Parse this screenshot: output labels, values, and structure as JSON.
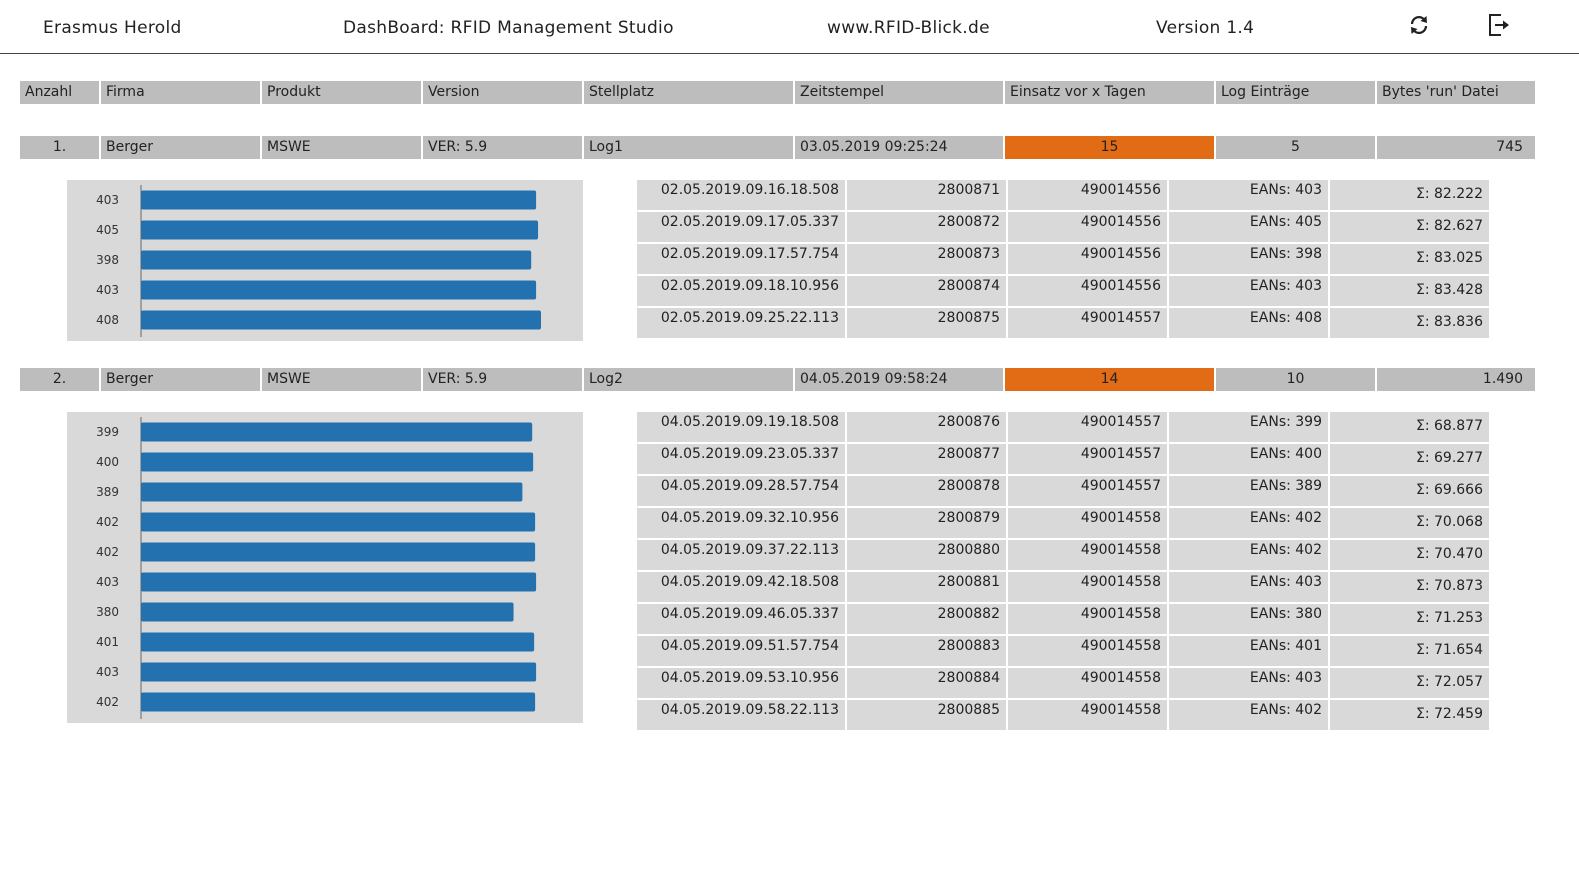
{
  "header": {
    "user": "Erasmus Herold",
    "app_title": "DashBoard: RFID Management Studio",
    "website": "www.RFID-Blick.de",
    "version": "Version 1.4",
    "refresh_icon": "refresh-icon",
    "logout_icon": "logout-icon"
  },
  "columns": [
    "Anzahl",
    "Firma",
    "Produkt",
    "Version",
    "Stellplatz",
    "Zeitstempel",
    "Einsatz vor x Tagen",
    "Log Einträge",
    "Bytes 'run' Datei"
  ],
  "colors": {
    "header_bg": "#bdbdbd",
    "panel_bg": "#d9d9d9",
    "highlight": "#e26b16",
    "bar": "#2471b0"
  },
  "entries": [
    {
      "summary": {
        "index": "1.",
        "firma": "Berger",
        "produkt": "MSWE",
        "version": "VER: 5.9",
        "stellplatz": "Log1",
        "zeitstempel": "03.05.2019 09:25:24",
        "einsatz": "15",
        "log_eintraege": "5",
        "bytes": "745"
      },
      "chart_data": {
        "type": "bar",
        "orientation": "horizontal",
        "categories": [
          "403",
          "405",
          "398",
          "403",
          "408"
        ],
        "values": [
          403,
          405,
          398,
          403,
          408
        ]
      },
      "logs": [
        {
          "timestamp": "02.05.2019.09.16.18.508",
          "id": "2800871",
          "code": "490014556",
          "eans": "EANs: 403",
          "sum": "Σ: 82.222"
        },
        {
          "timestamp": "02.05.2019.09.17.05.337",
          "id": "2800872",
          "code": "490014556",
          "eans": "EANs: 405",
          "sum": "Σ: 82.627"
        },
        {
          "timestamp": "02.05.2019.09.17.57.754",
          "id": "2800873",
          "code": "490014556",
          "eans": "EANs: 398",
          "sum": "Σ: 83.025"
        },
        {
          "timestamp": "02.05.2019.09.18.10.956",
          "id": "2800874",
          "code": "490014556",
          "eans": "EANs: 403",
          "sum": "Σ: 83.428"
        },
        {
          "timestamp": "02.05.2019.09.25.22.113",
          "id": "2800875",
          "code": "490014557",
          "eans": "EANs: 408",
          "sum": "Σ: 83.836"
        }
      ]
    },
    {
      "summary": {
        "index": "2.",
        "firma": "Berger",
        "produkt": "MSWE",
        "version": "VER: 5.9",
        "stellplatz": "Log2",
        "zeitstempel": "04.05.2019 09:58:24",
        "einsatz": "14",
        "log_eintraege": "10",
        "bytes": "1.490"
      },
      "chart_data": {
        "type": "bar",
        "orientation": "horizontal",
        "categories": [
          "399",
          "400",
          "389",
          "402",
          "402",
          "403",
          "380",
          "401",
          "403",
          "402"
        ],
        "values": [
          399,
          400,
          389,
          402,
          402,
          403,
          380,
          401,
          403,
          402
        ]
      },
      "logs": [
        {
          "timestamp": "04.05.2019.09.19.18.508",
          "id": "2800876",
          "code": "490014557",
          "eans": "EANs: 399",
          "sum": "Σ: 68.877"
        },
        {
          "timestamp": "04.05.2019.09.23.05.337",
          "id": "2800877",
          "code": "490014557",
          "eans": "EANs: 400",
          "sum": "Σ: 69.277"
        },
        {
          "timestamp": "04.05.2019.09.28.57.754",
          "id": "2800878",
          "code": "490014557",
          "eans": "EANs: 389",
          "sum": "Σ: 69.666"
        },
        {
          "timestamp": "04.05.2019.09.32.10.956",
          "id": "2800879",
          "code": "490014558",
          "eans": "EANs: 402",
          "sum": "Σ: 70.068"
        },
        {
          "timestamp": "04.05.2019.09.37.22.113",
          "id": "2800880",
          "code": "490014558",
          "eans": "EANs: 402",
          "sum": "Σ: 70.470"
        },
        {
          "timestamp": "04.05.2019.09.42.18.508",
          "id": "2800881",
          "code": "490014558",
          "eans": "EANs: 403",
          "sum": "Σ: 70.873"
        },
        {
          "timestamp": "04.05.2019.09.46.05.337",
          "id": "2800882",
          "code": "490014558",
          "eans": "EANs: 380",
          "sum": "Σ: 71.253"
        },
        {
          "timestamp": "04.05.2019.09.51.57.754",
          "id": "2800883",
          "code": "490014558",
          "eans": "EANs: 401",
          "sum": "Σ: 71.654"
        },
        {
          "timestamp": "04.05.2019.09.53.10.956",
          "id": "2800884",
          "code": "490014558",
          "eans": "EANs: 403",
          "sum": "Σ: 72.057"
        },
        {
          "timestamp": "04.05.2019.09.58.22.113",
          "id": "2800885",
          "code": "490014558",
          "eans": "EANs: 402",
          "sum": "Σ: 72.459"
        }
      ]
    }
  ]
}
